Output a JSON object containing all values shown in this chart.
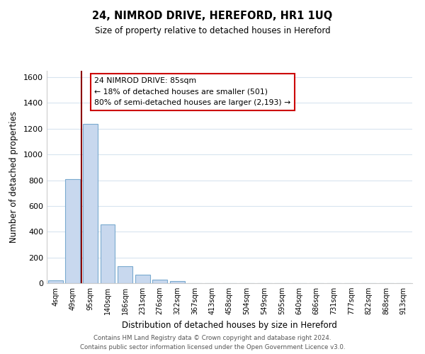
{
  "title": "24, NIMROD DRIVE, HEREFORD, HR1 1UQ",
  "subtitle": "Size of property relative to detached houses in Hereford",
  "xlabel": "Distribution of detached houses by size in Hereford",
  "ylabel": "Number of detached properties",
  "bar_labels": [
    "4sqm",
    "49sqm",
    "95sqm",
    "140sqm",
    "186sqm",
    "231sqm",
    "276sqm",
    "322sqm",
    "367sqm",
    "413sqm",
    "458sqm",
    "504sqm",
    "549sqm",
    "595sqm",
    "640sqm",
    "686sqm",
    "731sqm",
    "777sqm",
    "822sqm",
    "868sqm",
    "913sqm"
  ],
  "bar_values": [
    20,
    810,
    1240,
    455,
    130,
    65,
    25,
    15,
    0,
    0,
    0,
    0,
    0,
    0,
    0,
    0,
    0,
    0,
    0,
    0,
    0
  ],
  "bar_color": "#c8d8ee",
  "bar_edge_color": "#7aaacf",
  "vline_color": "#8b0000",
  "ylim": [
    0,
    1650
  ],
  "yticks": [
    0,
    200,
    400,
    600,
    800,
    1000,
    1200,
    1400,
    1600
  ],
  "annotation_title": "24 NIMROD DRIVE: 85sqm",
  "annotation_line1": "← 18% of detached houses are smaller (501)",
  "annotation_line2": "80% of semi-detached houses are larger (2,193) →",
  "footer1": "Contains HM Land Registry data © Crown copyright and database right 2024.",
  "footer2": "Contains public sector information licensed under the Open Government Licence v3.0.",
  "background_color": "#ffffff",
  "grid_color": "#d8e4ef"
}
